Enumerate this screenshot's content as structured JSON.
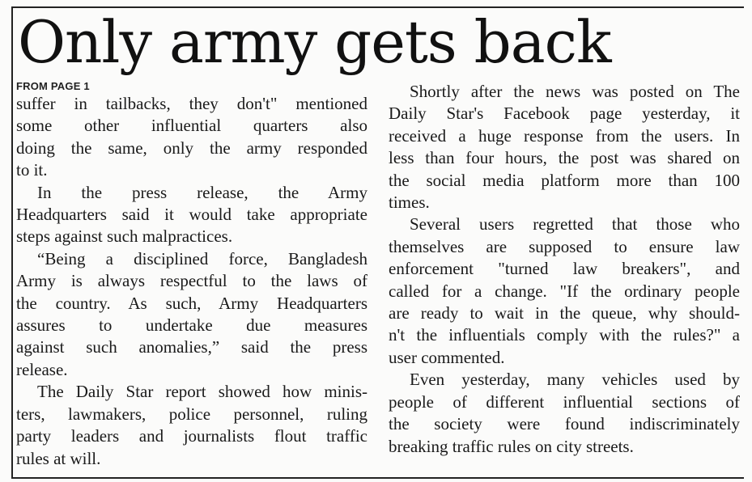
{
  "article": {
    "headline": "Only army gets back",
    "jump_line": "FROM PAGE 1",
    "left_column": {
      "p1": [
        "suffer in tailbacks, they don't\" mentioned",
        "some other influential quarters also",
        "doing the same, only the army responded",
        "to it."
      ],
      "p2": [
        "In the press release, the Army",
        "Headquarters said it would take appropriate",
        "steps against such malpractices."
      ],
      "p3": [
        "“Being a disciplined force, Bangladesh",
        "Army is always respectful to the laws of",
        "the country. As such, Army Headquarters",
        "assures to undertake due measures",
        "against such anomalies,” said the press",
        "release."
      ],
      "p4": [
        "The Daily Star report showed how minis-",
        "ters, lawmakers, police personnel, ruling",
        "party leaders and journalists flout traffic",
        "rules at will."
      ]
    },
    "right_column": {
      "p1": [
        "Shortly after the news was posted on The",
        "Daily Star's Facebook page yesterday, it",
        "received a huge response from the users. In",
        "less than four hours, the post was shared on",
        "the social media platform more than 100",
        "times."
      ],
      "p2": [
        "Several users regretted that those who",
        "themselves are supposed to ensure law",
        "enforcement \"turned law breakers\", and",
        "called for a change. \"If the ordinary people",
        "are ready to wait in the queue, why should-",
        "n't the influentials comply with the rules?\" a",
        "user commented."
      ],
      "p3": [
        "Even yesterday, many vehicles used by",
        "people of different influential sections of",
        "the society were found indiscriminately",
        "breaking traffic rules on city streets."
      ]
    }
  }
}
